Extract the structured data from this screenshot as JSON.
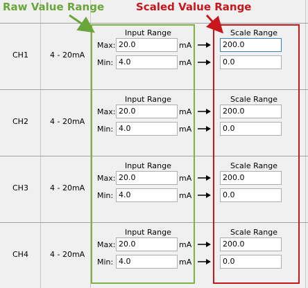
{
  "annotations": {
    "raw": "Raw Value Range",
    "scaled": "Scaled Value Range"
  },
  "rows": [
    {
      "channel": "CH1",
      "type": "4 - 20mA",
      "input_title": "Input Range",
      "max_label": "Max:",
      "max": "20.0",
      "max_unit": "mA",
      "min_label": "Min:",
      "min": "4.0",
      "min_unit": "mA",
      "scale_title": "Scale Range",
      "scale_max": "200.0",
      "scale_min": "0.0"
    },
    {
      "channel": "CH2",
      "type": "4 - 20mA",
      "input_title": "Input Range",
      "max_label": "Max:",
      "max": "20.0",
      "max_unit": "mA",
      "min_label": "Min:",
      "min": "4.0",
      "min_unit": "mA",
      "scale_title": "Scale Range",
      "scale_max": "200.0",
      "scale_min": "0.0"
    },
    {
      "channel": "CH3",
      "type": "4 - 20mA",
      "input_title": "Input Range",
      "max_label": "Max:",
      "max": "20.0",
      "max_unit": "mA",
      "min_label": "Min:",
      "min": "4.0",
      "min_unit": "mA",
      "scale_title": "Scale Range",
      "scale_max": "200.0",
      "scale_min": "0.0"
    },
    {
      "channel": "CH4",
      "type": "4 - 20mA",
      "input_title": "Input Range",
      "max_label": "Max:",
      "max": "20.0",
      "max_unit": "mA",
      "min_label": "Min:",
      "min": "4.0",
      "min_unit": "mA",
      "scale_title": "Scale Range",
      "scale_max": "200.0",
      "scale_min": "0.0"
    }
  ]
}
